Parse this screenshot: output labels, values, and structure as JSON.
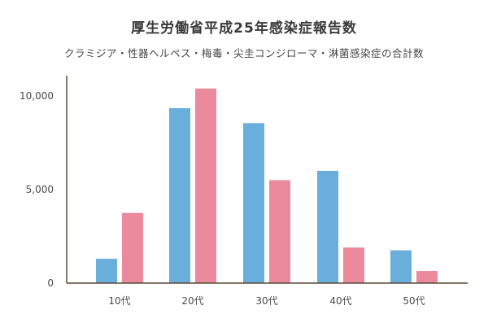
{
  "title": "厚生労働省平成25年感染症報告数",
  "subtitle": "クラミジア・性器ヘルペス・梅毒・尖圭コンジローマ・淋菌感染症の合計数",
  "colors": {
    "series_1": "#6aaedc",
    "series_2": "#ea8a9c",
    "axis": "#5a4a3a"
  },
  "chart_data": {
    "type": "bar",
    "title": "厚生労働省平成25年感染症報告数",
    "subtitle": "クラミジア・性器ヘルペス・梅毒・尖圭コンジローマ・淋菌感染症の合計数",
    "xlabel": "",
    "ylabel": "",
    "categories": [
      "10代",
      "20代",
      "30代",
      "40代",
      "50代"
    ],
    "series": [
      {
        "values": [
          1300,
          9350,
          8550,
          6000,
          1750
        ]
      },
      {
        "values": [
          3750,
          10400,
          5500,
          1900,
          650
        ]
      }
    ],
    "ylim": [
      0,
      11000
    ],
    "yticks": [
      0,
      5000,
      10000
    ],
    "ytick_labels": [
      "0",
      "5,000",
      "10,000"
    ],
    "grid": false,
    "legend": "none"
  }
}
